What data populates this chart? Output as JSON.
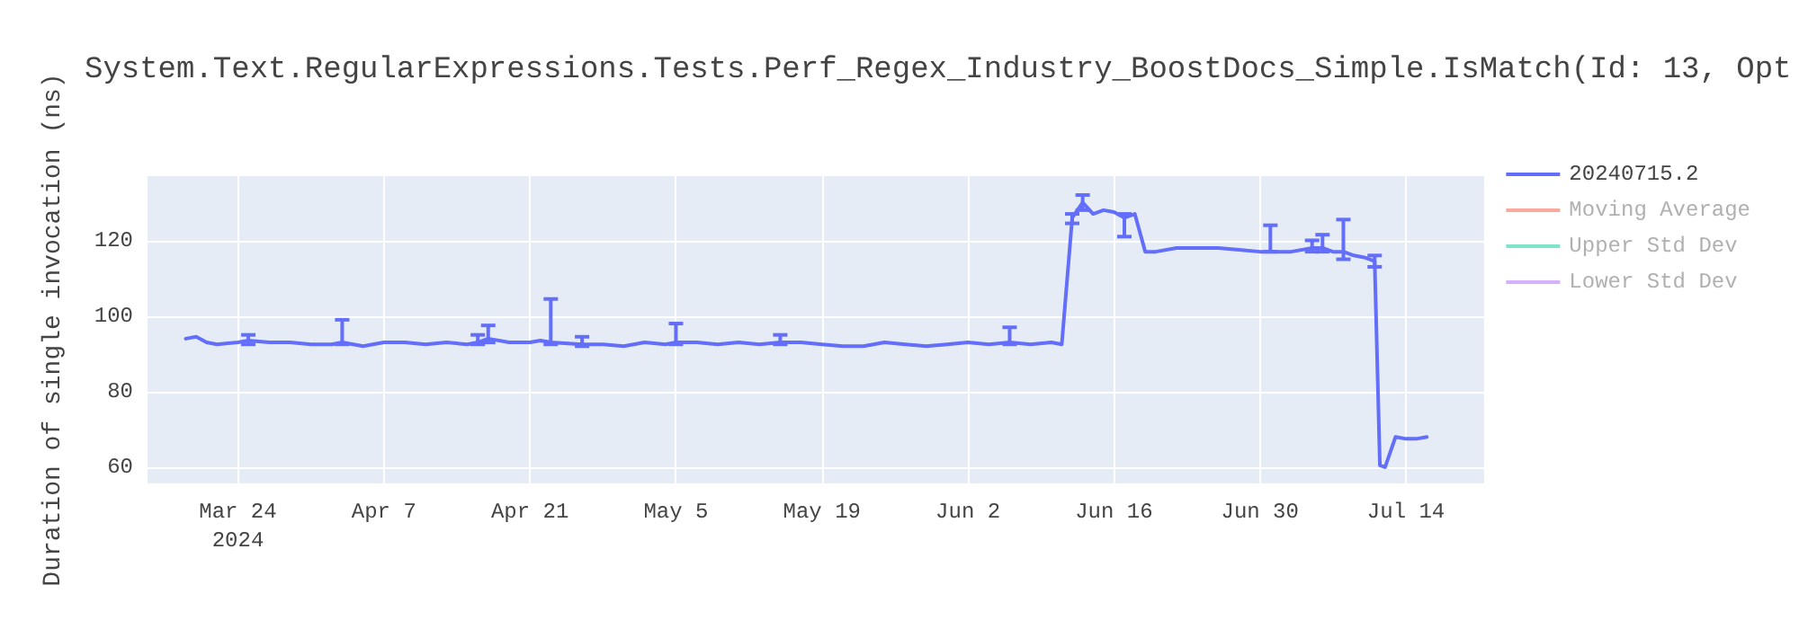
{
  "chart_data": {
    "type": "line",
    "title": "System.Text.RegularExpressions.Tests.Perf_Regex_Industry_BoostDocs_Simple.IsMatch(Id: 13, Opt",
    "ylabel": "Duration of single invocation (ns)",
    "xlim": [
      "2024-03-15T08:00",
      "2024-07-21T12:00"
    ],
    "xticks": [
      {
        "value": "2024-03-24",
        "label": "Mar 24\n2024"
      },
      {
        "value": "2024-04-07",
        "label": "Apr 7"
      },
      {
        "value": "2024-04-21",
        "label": "Apr 21"
      },
      {
        "value": "2024-05-05",
        "label": "May 5"
      },
      {
        "value": "2024-05-19",
        "label": "May 19"
      },
      {
        "value": "2024-06-02",
        "label": "Jun 2"
      },
      {
        "value": "2024-06-16",
        "label": "Jun 16"
      },
      {
        "value": "2024-06-30",
        "label": "Jun 30"
      },
      {
        "value": "2024-07-14",
        "label": "Jul 14"
      }
    ],
    "ylim": [
      55.7,
      137
    ],
    "yticks": [
      60,
      80,
      100,
      120
    ],
    "grid": true,
    "legend": "top right",
    "series": [
      {
        "name": "20240715.2",
        "color": "#636efa",
        "x": [
          "2024-03-19",
          "2024-03-20",
          "2024-03-21",
          "2024-03-22",
          "2024-03-24",
          "2024-03-25",
          "2024-03-27",
          "2024-03-29",
          "2024-03-31",
          "2024-04-02",
          "2024-04-03",
          "2024-04-05",
          "2024-04-07",
          "2024-04-09",
          "2024-04-11",
          "2024-04-13",
          "2024-04-15",
          "2024-04-16",
          "2024-04-17",
          "2024-04-19",
          "2024-04-21",
          "2024-04-22",
          "2024-04-23",
          "2024-04-26",
          "2024-04-28",
          "2024-04-30",
          "2024-05-02",
          "2024-05-04",
          "2024-05-05",
          "2024-05-07",
          "2024-05-09",
          "2024-05-11",
          "2024-05-13",
          "2024-05-15",
          "2024-05-17",
          "2024-05-19",
          "2024-05-21",
          "2024-05-23",
          "2024-05-25",
          "2024-05-27",
          "2024-05-29",
          "2024-05-31",
          "2024-06-02",
          "2024-06-04",
          "2024-06-06",
          "2024-06-08",
          "2024-06-10",
          "2024-06-11",
          "2024-06-12",
          "2024-06-13",
          "2024-06-14",
          "2024-06-15",
          "2024-06-16",
          "2024-06-17",
          "2024-06-18",
          "2024-06-19",
          "2024-06-20",
          "2024-06-22",
          "2024-06-24",
          "2024-06-26",
          "2024-06-28",
          "2024-06-30",
          "2024-07-01",
          "2024-07-03",
          "2024-07-05",
          "2024-07-06",
          "2024-07-07",
          "2024-07-08",
          "2024-07-09",
          "2024-07-10",
          "2024-07-11",
          "2024-07-11T12:00",
          "2024-07-12",
          "2024-07-13",
          "2024-07-14",
          "2024-07-15",
          "2024-07-16"
        ],
        "values": [
          94,
          94.5,
          93,
          92.5,
          93,
          93.5,
          93,
          93,
          92.5,
          92.5,
          93,
          92,
          93,
          93,
          92.5,
          93,
          92.5,
          93,
          94,
          93,
          93,
          93.5,
          93,
          92.5,
          92.5,
          92,
          93,
          92.5,
          93,
          93,
          92.5,
          93,
          92.5,
          93,
          93,
          92.5,
          92,
          92,
          93,
          92.5,
          92,
          92.5,
          93,
          92.5,
          93,
          92.5,
          93,
          92.5,
          126,
          130,
          127,
          128,
          127.5,
          126,
          127,
          117,
          117,
          118,
          118,
          118,
          117.5,
          117,
          117,
          117,
          118,
          118,
          117,
          117,
          116,
          115.5,
          114.5,
          60.5,
          60,
          68,
          67.5,
          67.5,
          68
        ],
        "errors": [
          null,
          null,
          null,
          null,
          null,
          [
            92.5,
            95
          ],
          null,
          null,
          null,
          null,
          [
            92.5,
            99
          ],
          null,
          null,
          null,
          null,
          null,
          null,
          [
            92.5,
            95
          ],
          [
            93,
            97.5
          ],
          null,
          null,
          null,
          [
            92.5,
            104.5
          ],
          [
            92,
            94.5
          ],
          null,
          null,
          null,
          null,
          [
            92.5,
            98
          ],
          null,
          null,
          null,
          null,
          [
            92.5,
            95
          ],
          null,
          null,
          null,
          null,
          null,
          null,
          null,
          null,
          null,
          null,
          [
            92.5,
            97
          ],
          null,
          null,
          null,
          [
            124.5,
            127
          ],
          [
            128,
            132
          ],
          null,
          null,
          null,
          [
            121,
            127
          ],
          null,
          null,
          null,
          null,
          null,
          null,
          null,
          null,
          [
            117,
            124
          ],
          null,
          [
            117,
            120
          ],
          [
            117,
            121.5
          ],
          null,
          [
            115,
            125.5
          ],
          null,
          null,
          [
            113,
            116
          ],
          null,
          null,
          null,
          null,
          null,
          null
        ]
      },
      {
        "name": "Moving Average",
        "color": "#ef553b"
      },
      {
        "name": "Upper Std Dev",
        "color": "#00cc96"
      },
      {
        "name": "Lower Std Dev",
        "color": "#ab63fa"
      }
    ]
  }
}
